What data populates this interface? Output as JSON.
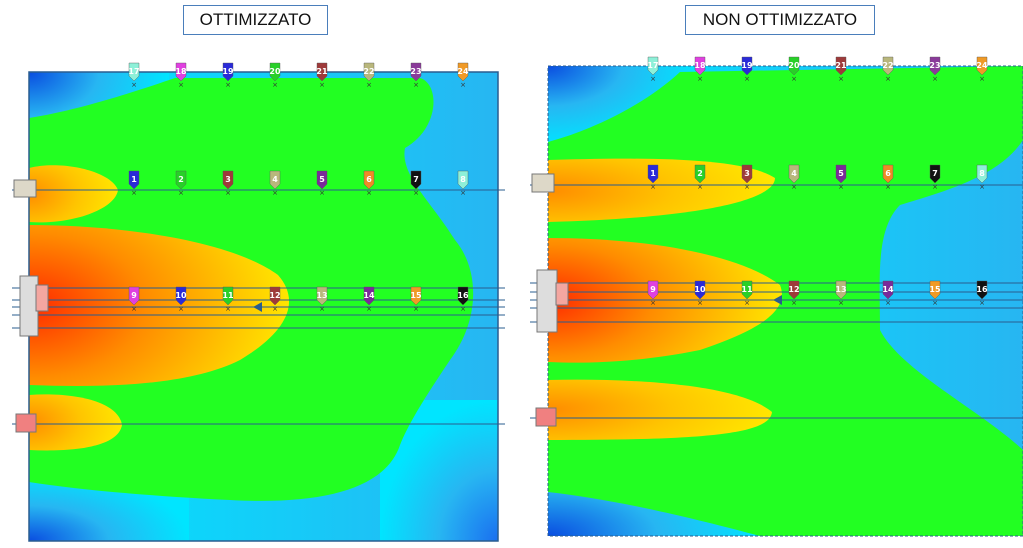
{
  "panels": [
    {
      "title": "OTTIMIZZATO"
    },
    {
      "title": "NON OTTIMIZZATO"
    }
  ],
  "colors": {
    "red": "#ff2a00",
    "orange": "#ff8c00",
    "yellow": "#ffe600",
    "green": "#22ff22",
    "cyan": "#00e5ff",
    "light_blue": "#27b6f2",
    "blue": "#0a4de0",
    "frame": "#2a5d8f"
  },
  "sensors": {
    "top_row": [
      {
        "n": "17",
        "c": "#8ef0d8"
      },
      {
        "n": "18",
        "c": "#e040e0"
      },
      {
        "n": "19",
        "c": "#2a2ad8"
      },
      {
        "n": "20",
        "c": "#28d028"
      },
      {
        "n": "21",
        "c": "#9e3a3a"
      },
      {
        "n": "22",
        "c": "#b9b77c"
      },
      {
        "n": "23",
        "c": "#8a3a9a"
      },
      {
        "n": "24",
        "c": "#f09a26"
      }
    ],
    "middle_row": [
      {
        "n": "1",
        "c": "#2a2ad8"
      },
      {
        "n": "2",
        "c": "#28d028"
      },
      {
        "n": "3",
        "c": "#9e3a3a"
      },
      {
        "n": "4",
        "c": "#b9b77c"
      },
      {
        "n": "5",
        "c": "#7a2a9a"
      },
      {
        "n": "6",
        "c": "#f08a26"
      },
      {
        "n": "7",
        "c": "#111111"
      },
      {
        "n": "8",
        "c": "#8ef0d8"
      }
    ],
    "bottom_row": [
      {
        "n": "9",
        "c": "#e040e0"
      },
      {
        "n": "10",
        "c": "#2a2ad8"
      },
      {
        "n": "11",
        "c": "#28d028"
      },
      {
        "n": "12",
        "c": "#9e3a3a"
      },
      {
        "n": "13",
        "c": "#b9b77c"
      },
      {
        "n": "14",
        "c": "#7a2a9a"
      },
      {
        "n": "15",
        "c": "#f09a26"
      },
      {
        "n": "16",
        "c": "#111111"
      }
    ]
  }
}
